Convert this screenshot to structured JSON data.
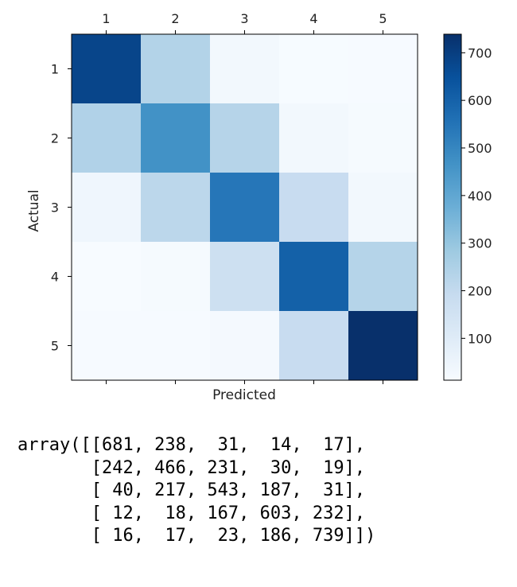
{
  "chart_data": {
    "type": "heatmap",
    "title": "",
    "xlabel": "Predicted",
    "ylabel": "Actual",
    "x_categories": [
      "1",
      "2",
      "3",
      "4",
      "5"
    ],
    "y_categories": [
      "1",
      "2",
      "3",
      "4",
      "5"
    ],
    "x_tick_position": "top",
    "values": [
      [
        681,
        238,
        31,
        14,
        17
      ],
      [
        242,
        466,
        231,
        30,
        19
      ],
      [
        40,
        217,
        543,
        187,
        31
      ],
      [
        12,
        18,
        167,
        603,
        232
      ],
      [
        16,
        17,
        23,
        186,
        739
      ]
    ],
    "colormap": "Blues",
    "colormap_low": "#f7fbff",
    "colormap_high": "#08306b",
    "color_range": [
      12,
      739
    ],
    "colorbar": {
      "ticks": [
        "100",
        "200",
        "300",
        "400",
        "500",
        "600",
        "700"
      ],
      "tick_values": [
        100,
        200,
        300,
        400,
        500,
        600,
        700
      ]
    }
  },
  "output": {
    "lines": [
      "array([[681, 238,  31,  14,  17],",
      "       [242, 466, 231,  30,  19],",
      "       [ 40, 217, 543, 187,  31],",
      "       [ 12,  18, 167, 603, 232],",
      "       [ 16,  17,  23, 186, 739]])"
    ]
  }
}
